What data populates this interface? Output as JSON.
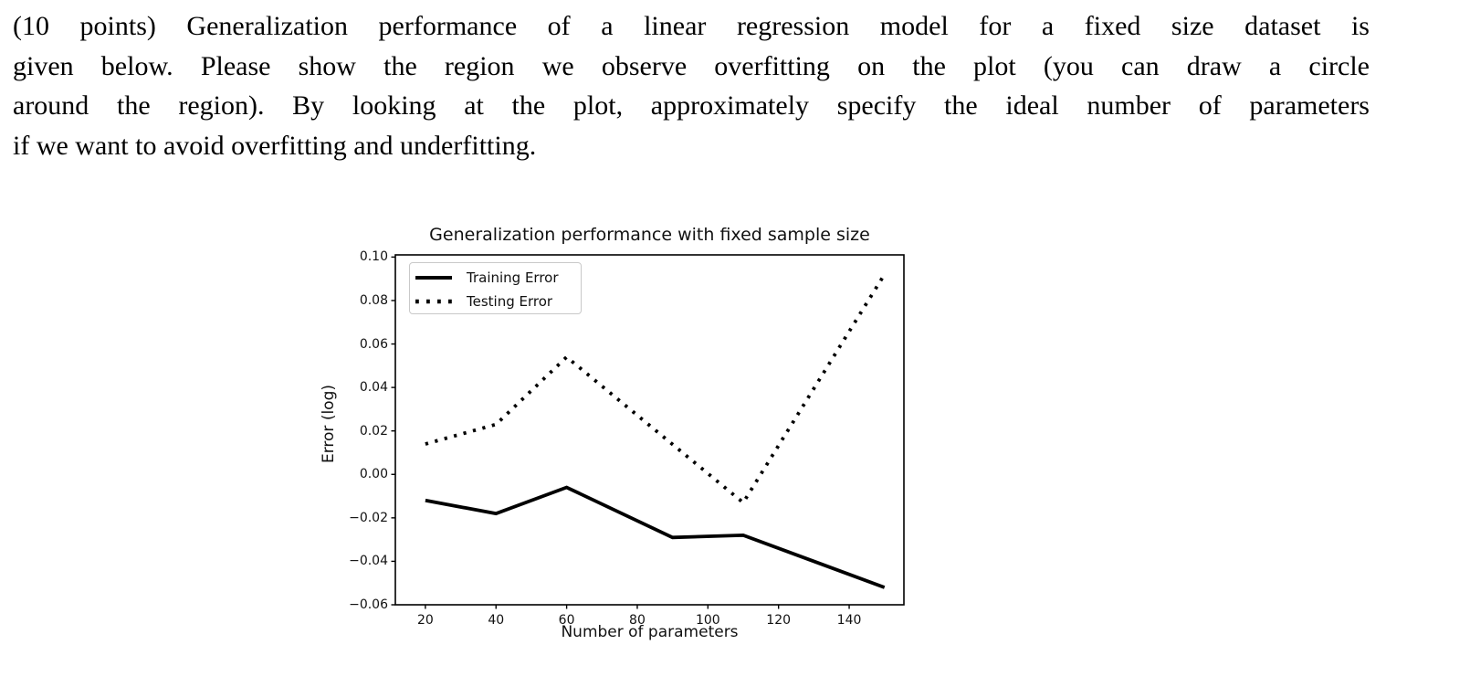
{
  "question": {
    "points_tag": "(10 points)",
    "full_text": "(10 points) Generalization performance of a linear regression model for a fixed size dataset is given below. Please show the region we observe overfitting on the plot (you can draw a circle around the region). By looking at the plot, approximately specify the ideal number of parameters if we want to avoid overfitting and underfitting.",
    "lines": [
      "(10 points) Generalization performance of a linear regression model for a fixed size dataset is",
      "given below.  Please show the region we observe overfitting on the plot (you can draw a circle",
      "around the region). By looking at the plot, approximately specify the ideal number of parameters",
      "if we want to avoid overfitting and underfitting."
    ]
  },
  "chart_data": {
    "type": "line",
    "title": "Generalization performance with fixed sample size",
    "xlabel": "Number of parameters",
    "ylabel": "Error (log)",
    "xlim": [
      11.5,
      155.5
    ],
    "ylim": [
      -0.06,
      0.101
    ],
    "grid": false,
    "legend_position": "upper left",
    "line_color": "#000000",
    "xticks": {
      "values": [
        20,
        40,
        60,
        80,
        100,
        120,
        140
      ],
      "labels": [
        "20",
        "40",
        "60",
        "80",
        "100",
        "120",
        "140"
      ]
    },
    "yticks": {
      "values": [
        0.1,
        0.08,
        0.06,
        0.04,
        0.02,
        0.0,
        -0.02,
        -0.04,
        -0.06
      ],
      "labels": [
        "0.10",
        "0.08",
        "0.06",
        "0.04",
        "0.02",
        "0.00",
        "−0.02",
        "−0.04",
        "−0.06"
      ]
    },
    "series": [
      {
        "name": "Training Error",
        "style": "solid",
        "color": "#000000",
        "x": [
          20,
          40,
          60,
          90,
          110,
          150
        ],
        "y": [
          -0.012,
          -0.018,
          -0.006,
          -0.029,
          -0.028,
          -0.052
        ]
      },
      {
        "name": "Testing Error",
        "style": "dotted",
        "color": "#000000",
        "x": [
          20,
          40,
          60,
          110,
          150
        ],
        "y": [
          0.014,
          0.023,
          0.054,
          -0.013,
          0.092
        ]
      }
    ]
  }
}
